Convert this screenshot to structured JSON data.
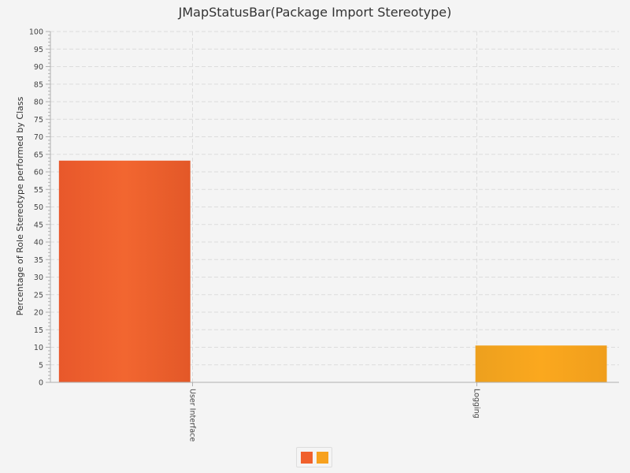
{
  "chart_data": {
    "type": "bar",
    "title": "JMapStatusBar(Package Import Stereotype)",
    "xlabel": "",
    "ylabel": "Percentage of Role Stereotype performed by Class",
    "categories": [
      "User Interface",
      "Logging"
    ],
    "series": [
      {
        "values": [
          63.2,
          0
        ],
        "color": "#f0602c"
      },
      {
        "values": [
          0,
          10.5
        ],
        "color": "#f7a11e"
      }
    ],
    "ylim": [
      0,
      100
    ],
    "yticks": [
      0,
      5,
      10,
      15,
      20,
      25,
      30,
      35,
      40,
      45,
      50,
      55,
      60,
      65,
      70,
      75,
      80,
      85,
      90,
      95,
      100
    ],
    "grid": true,
    "legend": "bottom-center"
  },
  "colors": {
    "background": "#f4f4f4",
    "grid": "#dcdcdc",
    "axis": "#b0b0b0"
  }
}
